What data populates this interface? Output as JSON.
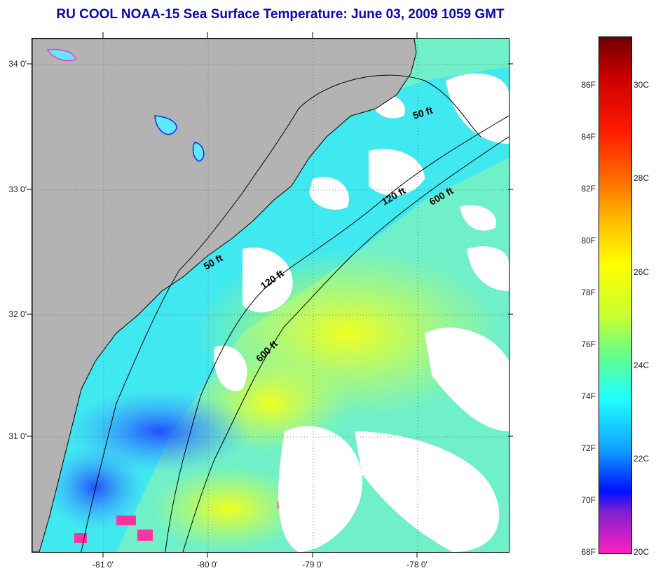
{
  "title": "RU COOL  NOAA-15  Sea Surface Temperature:  June 03, 2009 1059 GMT",
  "map": {
    "lat_ticks": [
      "34 0'",
      "33 0'",
      "32 0'",
      "31 0'"
    ],
    "lon_ticks": [
      "-81 0'",
      "-80 0'",
      "-79 0'",
      "-78 0'"
    ],
    "depth_contours": [
      {
        "label": "50 ft"
      },
      {
        "label": "120 ft"
      },
      {
        "label": "600 ft"
      },
      {
        "label": "50 ft"
      },
      {
        "label": "120 ft"
      },
      {
        "label": "600 ft"
      }
    ],
    "colors": {
      "land": "#b3b3b3",
      "cloud": "#ffffff",
      "sst_cool": "#33ffff",
      "sst_warm": "#ffff33"
    }
  },
  "colorbar": {
    "fahrenheit": [
      "86F",
      "84F",
      "82F",
      "80F",
      "78F",
      "76F",
      "74F",
      "72F",
      "70F",
      "68F"
    ],
    "celsius": [
      "30C",
      "28C",
      "26C",
      "24C",
      "22C",
      "20C"
    ]
  }
}
